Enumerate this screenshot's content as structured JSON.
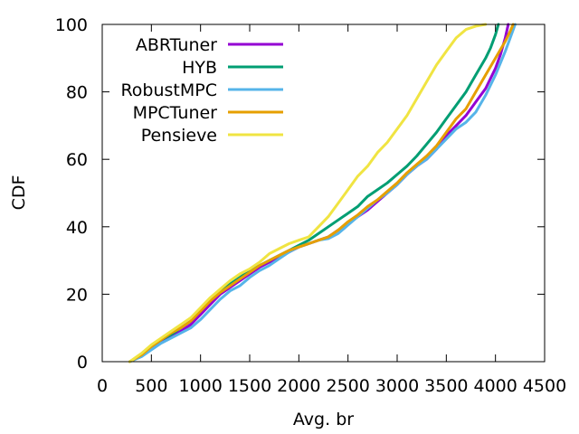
{
  "chart_data": {
    "type": "line",
    "xlabel": "Avg. br",
    "ylabel": "CDF",
    "xlim": [
      0,
      4500
    ],
    "ylim": [
      0,
      100
    ],
    "xticks": [
      0,
      500,
      1000,
      1500,
      2000,
      2500,
      3000,
      3500,
      4000,
      4500
    ],
    "yticks": [
      0,
      20,
      40,
      60,
      80,
      100
    ],
    "grid": false,
    "legend_position": "top-left",
    "series": [
      {
        "name": "ABRTuner",
        "color": "#9400d3",
        "points": [
          [
            280,
            0
          ],
          [
            400,
            2
          ],
          [
            500,
            4
          ],
          [
            600,
            6
          ],
          [
            700,
            7.5
          ],
          [
            800,
            9
          ],
          [
            900,
            11
          ],
          [
            1000,
            14
          ],
          [
            1100,
            17
          ],
          [
            1200,
            20
          ],
          [
            1300,
            22
          ],
          [
            1400,
            24
          ],
          [
            1500,
            26
          ],
          [
            1600,
            28
          ],
          [
            1700,
            29.5
          ],
          [
            1800,
            31
          ],
          [
            1900,
            32.5
          ],
          [
            2000,
            34
          ],
          [
            2100,
            35
          ],
          [
            2200,
            36
          ],
          [
            2300,
            37
          ],
          [
            2400,
            39
          ],
          [
            2500,
            41
          ],
          [
            2600,
            43
          ],
          [
            2700,
            45
          ],
          [
            2800,
            47.5
          ],
          [
            2900,
            50
          ],
          [
            3000,
            52.5
          ],
          [
            3100,
            55.5
          ],
          [
            3200,
            58
          ],
          [
            3300,
            60
          ],
          [
            3400,
            63
          ],
          [
            3500,
            67
          ],
          [
            3600,
            70
          ],
          [
            3700,
            73
          ],
          [
            3800,
            77
          ],
          [
            3900,
            81
          ],
          [
            4000,
            87
          ],
          [
            4050,
            91
          ],
          [
            4100,
            96
          ],
          [
            4130,
            100
          ]
        ]
      },
      {
        "name": "HYB",
        "color": "#009e73",
        "points": [
          [
            280,
            0
          ],
          [
            400,
            2
          ],
          [
            500,
            4.5
          ],
          [
            600,
            6.5
          ],
          [
            700,
            8
          ],
          [
            800,
            10
          ],
          [
            900,
            12
          ],
          [
            1000,
            15.5
          ],
          [
            1100,
            18.5
          ],
          [
            1200,
            21
          ],
          [
            1300,
            23
          ],
          [
            1400,
            25
          ],
          [
            1500,
            27
          ],
          [
            1600,
            28.5
          ],
          [
            1700,
            30
          ],
          [
            1800,
            31.5
          ],
          [
            1900,
            33
          ],
          [
            2000,
            34.5
          ],
          [
            2100,
            36
          ],
          [
            2200,
            38
          ],
          [
            2300,
            40
          ],
          [
            2400,
            42
          ],
          [
            2500,
            44
          ],
          [
            2600,
            46
          ],
          [
            2700,
            49
          ],
          [
            2800,
            51
          ],
          [
            2900,
            53
          ],
          [
            3000,
            55.5
          ],
          [
            3100,
            58
          ],
          [
            3200,
            61
          ],
          [
            3300,
            64.5
          ],
          [
            3400,
            68
          ],
          [
            3500,
            72
          ],
          [
            3600,
            76
          ],
          [
            3700,
            80
          ],
          [
            3800,
            85
          ],
          [
            3900,
            90
          ],
          [
            3950,
            93
          ],
          [
            4000,
            97
          ],
          [
            4030,
            100
          ]
        ]
      },
      {
        "name": "RobustMPC",
        "color": "#56b4e9",
        "points": [
          [
            280,
            0
          ],
          [
            400,
            1.5
          ],
          [
            500,
            3.5
          ],
          [
            600,
            5.5
          ],
          [
            700,
            7
          ],
          [
            800,
            8.5
          ],
          [
            900,
            10
          ],
          [
            1000,
            12.5
          ],
          [
            1100,
            15.5
          ],
          [
            1200,
            18.5
          ],
          [
            1300,
            21
          ],
          [
            1400,
            22.5
          ],
          [
            1500,
            25
          ],
          [
            1600,
            27
          ],
          [
            1700,
            28.5
          ],
          [
            1800,
            30.5
          ],
          [
            1900,
            32.5
          ],
          [
            2000,
            34
          ],
          [
            2100,
            35
          ],
          [
            2200,
            36
          ],
          [
            2300,
            36.5
          ],
          [
            2400,
            38
          ],
          [
            2500,
            40.5
          ],
          [
            2600,
            43
          ],
          [
            2700,
            45.5
          ],
          [
            2800,
            48
          ],
          [
            2900,
            50
          ],
          [
            3000,
            52.5
          ],
          [
            3100,
            55.5
          ],
          [
            3200,
            58
          ],
          [
            3300,
            60
          ],
          [
            3400,
            63
          ],
          [
            3500,
            66
          ],
          [
            3600,
            69
          ],
          [
            3700,
            71
          ],
          [
            3800,
            74
          ],
          [
            3900,
            79
          ],
          [
            4000,
            85
          ],
          [
            4100,
            92
          ],
          [
            4150,
            96
          ],
          [
            4200,
            100
          ]
        ]
      },
      {
        "name": "MPCTuner",
        "color": "#e69f00",
        "points": [
          [
            280,
            0
          ],
          [
            400,
            2
          ],
          [
            500,
            4.5
          ],
          [
            600,
            6.5
          ],
          [
            700,
            8.5
          ],
          [
            800,
            10
          ],
          [
            900,
            12
          ],
          [
            1000,
            15
          ],
          [
            1100,
            18
          ],
          [
            1200,
            20.5
          ],
          [
            1300,
            22.5
          ],
          [
            1400,
            24.5
          ],
          [
            1500,
            26.5
          ],
          [
            1600,
            28.5
          ],
          [
            1700,
            30
          ],
          [
            1800,
            31.5
          ],
          [
            1900,
            33
          ],
          [
            2000,
            34
          ],
          [
            2100,
            35
          ],
          [
            2200,
            36
          ],
          [
            2300,
            37
          ],
          [
            2400,
            39
          ],
          [
            2500,
            41.5
          ],
          [
            2600,
            43.5
          ],
          [
            2700,
            46
          ],
          [
            2800,
            48
          ],
          [
            2900,
            50.5
          ],
          [
            3000,
            53
          ],
          [
            3100,
            56
          ],
          [
            3200,
            58.5
          ],
          [
            3300,
            61
          ],
          [
            3400,
            64
          ],
          [
            3500,
            68
          ],
          [
            3600,
            72
          ],
          [
            3700,
            75
          ],
          [
            3800,
            80
          ],
          [
            3900,
            85
          ],
          [
            4000,
            90
          ],
          [
            4100,
            95
          ],
          [
            4150,
            98
          ],
          [
            4180,
            100
          ]
        ]
      },
      {
        "name": "Pensieve",
        "color": "#f0e442",
        "points": [
          [
            280,
            0
          ],
          [
            400,
            2.5
          ],
          [
            500,
            5
          ],
          [
            600,
            7
          ],
          [
            700,
            9
          ],
          [
            800,
            11
          ],
          [
            900,
            13
          ],
          [
            1000,
            16
          ],
          [
            1100,
            19
          ],
          [
            1200,
            21.5
          ],
          [
            1300,
            24
          ],
          [
            1400,
            26
          ],
          [
            1500,
            27.5
          ],
          [
            1600,
            29.5
          ],
          [
            1700,
            32
          ],
          [
            1800,
            33.5
          ],
          [
            1900,
            35
          ],
          [
            2000,
            36
          ],
          [
            2100,
            37
          ],
          [
            2200,
            40
          ],
          [
            2300,
            43
          ],
          [
            2400,
            47
          ],
          [
            2500,
            51
          ],
          [
            2600,
            55
          ],
          [
            2700,
            58
          ],
          [
            2800,
            62
          ],
          [
            2900,
            65
          ],
          [
            3000,
            69
          ],
          [
            3100,
            73
          ],
          [
            3200,
            78
          ],
          [
            3300,
            83
          ],
          [
            3400,
            88
          ],
          [
            3500,
            92
          ],
          [
            3600,
            96
          ],
          [
            3700,
            98.5
          ],
          [
            3800,
            99.5
          ],
          [
            3900,
            100
          ]
        ]
      }
    ]
  }
}
